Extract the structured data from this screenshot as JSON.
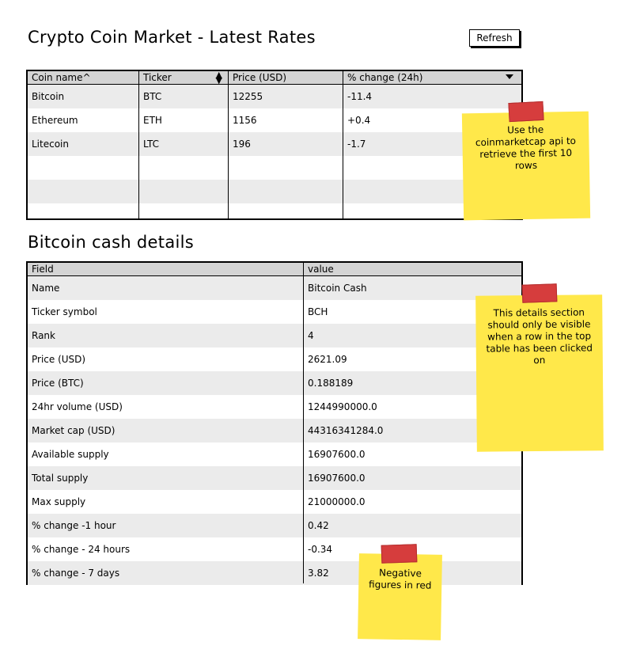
{
  "header": {
    "title": "Crypto Coin Market - Latest Rates",
    "refresh_label": "Refresh"
  },
  "market_table": {
    "columns": [
      "Coin name^",
      "Ticker",
      "Price (USD)",
      "% change (24h)"
    ],
    "rows": [
      [
        "Bitcoin",
        "BTC",
        "12255",
        "-11.4"
      ],
      [
        "Ethereum",
        "ETH",
        "1156",
        "+0.4"
      ],
      [
        "Litecoin",
        "LTC",
        "196",
        "-1.7"
      ]
    ]
  },
  "details": {
    "title": "Bitcoin cash details",
    "columns": [
      "Field",
      "value"
    ],
    "rows": [
      [
        "Name",
        "Bitcoin Cash"
      ],
      [
        "Ticker symbol",
        "BCH"
      ],
      [
        "Rank",
        "4"
      ],
      [
        "Price (USD)",
        "2621.09"
      ],
      [
        "Price (BTC)",
        "0.188189"
      ],
      [
        "24hr volume (USD)",
        "1244990000.0"
      ],
      [
        "Market cap (USD)",
        "44316341284.0"
      ],
      [
        "Available supply",
        "16907600.0"
      ],
      [
        "Total supply",
        "16907600.0"
      ],
      [
        "Max supply",
        "21000000.0"
      ],
      [
        "% change -1 hour",
        "0.42"
      ],
      [
        "% change - 24 hours",
        "-0.34"
      ],
      [
        "% change - 7 days",
        "3.82"
      ]
    ]
  },
  "notes": {
    "api": "Use the coinmarketcap api to retrieve the first 10 rows",
    "visibility": "This details section should only be visible when a row in the top table has been clicked on",
    "negative": "Negative figures in red"
  },
  "colors": {
    "header_bg": "#d4d4d4",
    "row_alt": "#ebebeb",
    "note": "#ffe84a",
    "tape": "#d63d3d"
  }
}
